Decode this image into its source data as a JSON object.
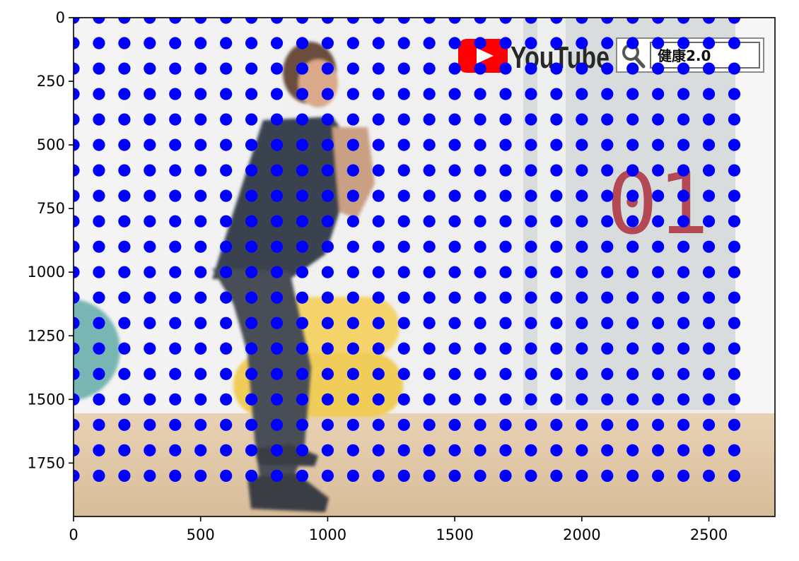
{
  "chart_data": {
    "type": "scatter",
    "title": "",
    "xlabel": "",
    "ylabel": "",
    "xlim": [
      0,
      2760
    ],
    "ylim": [
      1960,
      0
    ],
    "y_inverted": true,
    "grid": false,
    "x_ticks": [
      0,
      500,
      1000,
      1500,
      2000,
      2500
    ],
    "y_ticks": [
      0,
      250,
      500,
      750,
      1000,
      1250,
      1500,
      1750
    ],
    "x_tick_labels": [
      "0",
      "500",
      "1000",
      "1500",
      "2000",
      "2500"
    ],
    "y_tick_labels": [
      "0",
      "250",
      "500",
      "750",
      "1000",
      "1250",
      "1500",
      "1750"
    ],
    "points": {
      "color": "#0000ff",
      "x_start": 0,
      "x_step": 100,
      "x_end": 2600,
      "y_start": 0,
      "y_step": 100,
      "y_end": 1800
    },
    "background_image": {
      "logo_text": "YouTube",
      "search_text": "健康2.0",
      "episode_number": "01"
    }
  }
}
